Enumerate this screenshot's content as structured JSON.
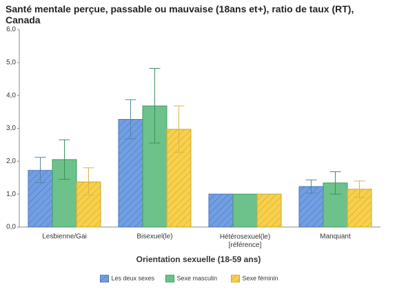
{
  "chart_data": {
    "type": "bar",
    "title": "Santé mentale perçue, passable ou mauvaise (18ans et+), ratio de taux (RT), Canada",
    "x_label": "Orientation sexuelle (18-59 ans)",
    "categories": [
      "Lesbienne/Gai",
      "Bisexuel(le)",
      "Hétérosexuel(le)\n[référence]",
      "Manquant"
    ],
    "series": [
      {
        "name": "Les deux sexes",
        "color": "#729fe3",
        "edge": "#4a72b8",
        "error_color": "#4f86a8",
        "hatch": true,
        "values": [
          1.72,
          3.27,
          1.0,
          1.23
        ],
        "error_low": [
          1.35,
          2.68,
          null,
          1.03
        ],
        "error_high": [
          2.12,
          3.87,
          null,
          1.43
        ]
      },
      {
        "name": "Sexe masculin",
        "color": "#6dc28c",
        "edge": "#3f9a60",
        "error_color": "#3c8f5a",
        "hatch": false,
        "values": [
          2.05,
          3.68,
          1.0,
          1.34
        ],
        "error_low": [
          1.45,
          2.55,
          null,
          1.0
        ],
        "error_high": [
          2.65,
          4.82,
          null,
          1.68
        ]
      },
      {
        "name": "Sexe féminin",
        "color": "#f8d04c",
        "edge": "#cfa52a",
        "error_color": "#d9b648",
        "hatch": true,
        "values": [
          1.37,
          2.97,
          1.0,
          1.15
        ],
        "error_low": [
          0.97,
          2.27,
          null,
          0.9
        ],
        "error_high": [
          1.8,
          3.68,
          null,
          1.4
        ]
      }
    ],
    "ylim": [
      0,
      6
    ],
    "yticks": [
      {
        "value": 0,
        "label": "0,0"
      },
      {
        "value": 1,
        "label": "1,0"
      },
      {
        "value": 2,
        "label": "2,0"
      },
      {
        "value": 3,
        "label": "3,0"
      },
      {
        "value": 4,
        "label": "4,0"
      },
      {
        "value": 5,
        "label": "5,0"
      },
      {
        "value": 6,
        "label": "6,0"
      }
    ],
    "grid": false,
    "legend": "bottom"
  }
}
